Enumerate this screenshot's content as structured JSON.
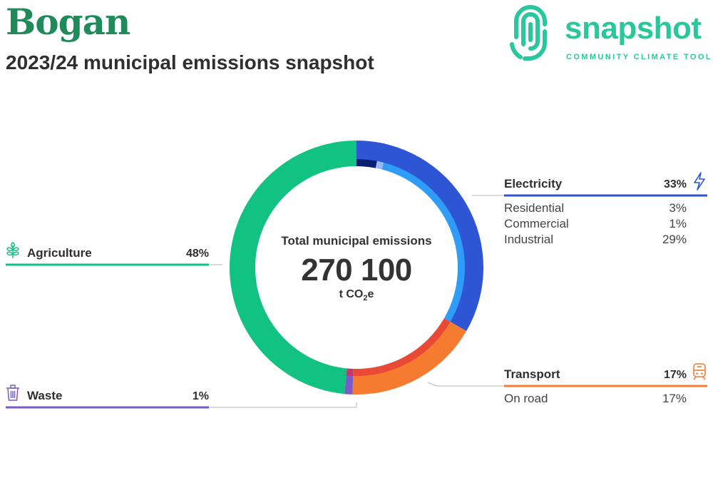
{
  "header": {
    "title": "Bogan",
    "subtitle": "2023/24 municipal emissions snapshot"
  },
  "logo": {
    "word": "snapshot",
    "tagline": "COMMUNITY CLIMATE TOOL",
    "color": "#2bc79c"
  },
  "center": {
    "label": "Total municipal emissions",
    "value": "270 100",
    "unit_main": "t CO",
    "unit_sub": "2",
    "unit_end": "e"
  },
  "chart_data": {
    "type": "pie",
    "subtype": "donut",
    "total": 270100,
    "unit": "t CO2e",
    "categories": [
      {
        "name": "Electricity",
        "percent": 33,
        "percent_label": "33%",
        "color": "#2d55d4",
        "subcategories": [
          {
            "name": "Residential",
            "percent": 3,
            "percent_label": "3%",
            "color": "#0b1f6f"
          },
          {
            "name": "Commercial",
            "percent": 1,
            "percent_label": "1%",
            "color": "#9ab7f5"
          },
          {
            "name": "Industrial",
            "percent": 29,
            "percent_label": "29%",
            "color": "#2f9cf7"
          }
        ]
      },
      {
        "name": "Transport",
        "percent": 17,
        "percent_label": "17%",
        "color": "#f47b30",
        "subcategories": [
          {
            "name": "On road",
            "percent": 17,
            "percent_label": "17%",
            "color": "#e84a36"
          }
        ]
      },
      {
        "name": "Waste",
        "percent": 1,
        "percent_label": "1%",
        "color": "#7a5bc7",
        "subcategories": [
          {
            "name": "",
            "percent": 1,
            "percent_label": "",
            "color": "#c23a6a"
          }
        ]
      },
      {
        "name": "Agriculture",
        "percent": 48,
        "percent_label": "48%",
        "color": "#12c283",
        "subcategories": [
          {
            "name": "",
            "percent": 48,
            "percent_label": "",
            "color": "#12c283"
          }
        ]
      }
    ]
  }
}
